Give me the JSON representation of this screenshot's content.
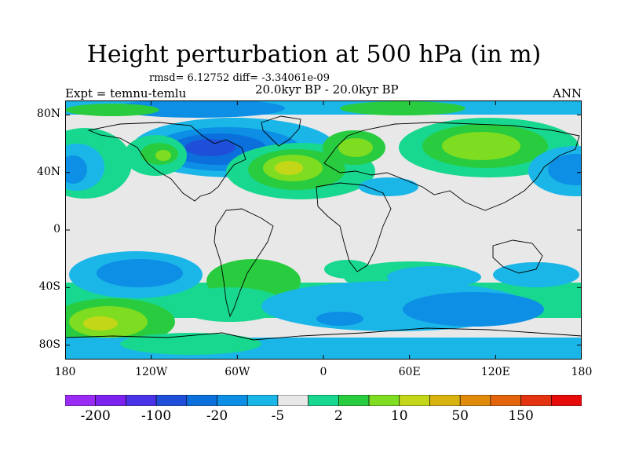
{
  "title": "Height perturbation at 500 hPa (in m)",
  "stats": "rmsd= 6.12752  diff= -3.34061e-09",
  "experiment": "Expt = temnu-temlu",
  "period": "20.0kyr BP - 20.0kyr BP",
  "season": "ANN",
  "y_axis": {
    "tick_labels": [
      "80N",
      "40N",
      "0",
      "40S",
      "80S"
    ],
    "tick_lat": [
      80,
      40,
      0,
      -40,
      -80
    ]
  },
  "x_axis": {
    "tick_labels": [
      "180",
      "120W",
      "60W",
      "0",
      "60E",
      "120E",
      "180"
    ],
    "tick_lon": [
      -180,
      -120,
      -60,
      0,
      60,
      120,
      180
    ]
  },
  "colorbar": {
    "colors": [
      "#9a2af5",
      "#7d22ee",
      "#4a33e6",
      "#1f4fd9",
      "#0b6fdc",
      "#0c8fe5",
      "#1bb6e8",
      "#e8e8e8",
      "#18d78f",
      "#29cc3f",
      "#7edc21",
      "#c3d617",
      "#d8b20e",
      "#e08a0a",
      "#e4640b",
      "#e43310",
      "#e60a0a"
    ],
    "labels": [
      "-200",
      "-100",
      "-20",
      "-5",
      "2",
      "10",
      "50",
      "150"
    ]
  }
}
